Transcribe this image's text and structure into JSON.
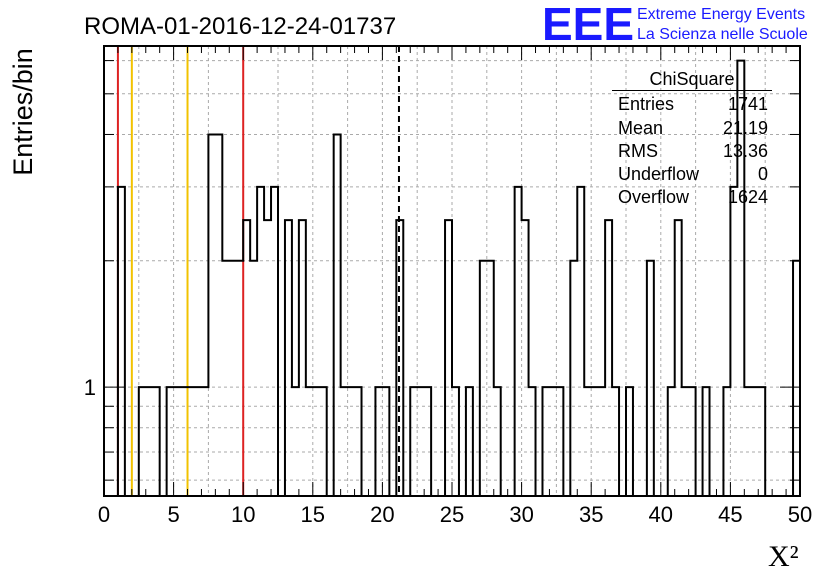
{
  "title": "ROMA-01-2016-12-24-01737",
  "logo": {
    "mark": "EEE",
    "line1": "Extreme Energy Events",
    "line2": "La Scienza nelle Scuole",
    "color": "#1a1aff"
  },
  "stats": {
    "name": "ChiSquare",
    "rows": [
      {
        "label": "Entries",
        "value": "1741"
      },
      {
        "label": "Mean",
        "value": "21.19"
      },
      {
        "label": "RMS",
        "value": "13.36"
      },
      {
        "label": "Underflow",
        "value": "0"
      },
      {
        "label": "Overflow",
        "value": "1624"
      }
    ]
  },
  "chart_data": {
    "type": "bar",
    "histogram": true,
    "title": "ROMA-01-2016-12-24-01737",
    "xlabel": "X²",
    "ylabel": "Entries/bin",
    "xlim": [
      0,
      50
    ],
    "ylim": [
      0.55,
      6.5
    ],
    "log_y": true,
    "grid": true,
    "bin_width": 0.5,
    "xticks": [
      0,
      5,
      10,
      15,
      20,
      25,
      30,
      35,
      40,
      45,
      50
    ],
    "yticks": [
      1
    ],
    "bins": [
      {
        "x": 1.0,
        "y": 3
      },
      {
        "x": 2.5,
        "y": 1
      },
      {
        "x": 3.0,
        "y": 1
      },
      {
        "x": 3.5,
        "y": 1
      },
      {
        "x": 4.5,
        "y": 1
      },
      {
        "x": 5.0,
        "y": 1
      },
      {
        "x": 5.5,
        "y": 1
      },
      {
        "x": 6.0,
        "y": 1
      },
      {
        "x": 6.5,
        "y": 1
      },
      {
        "x": 7.0,
        "y": 1
      },
      {
        "x": 7.5,
        "y": 4
      },
      {
        "x": 8.0,
        "y": 4
      },
      {
        "x": 8.5,
        "y": 2
      },
      {
        "x": 9.0,
        "y": 2
      },
      {
        "x": 9.5,
        "y": 2
      },
      {
        "x": 10.0,
        "y": 2.5
      },
      {
        "x": 10.5,
        "y": 2
      },
      {
        "x": 11.0,
        "y": 3
      },
      {
        "x": 11.5,
        "y": 2.5
      },
      {
        "x": 12.0,
        "y": 3
      },
      {
        "x": 13.0,
        "y": 2.5
      },
      {
        "x": 13.5,
        "y": 1
      },
      {
        "x": 14.0,
        "y": 2.5
      },
      {
        "x": 14.5,
        "y": 1
      },
      {
        "x": 15.0,
        "y": 1
      },
      {
        "x": 15.5,
        "y": 1
      },
      {
        "x": 16.5,
        "y": 4
      },
      {
        "x": 17.0,
        "y": 1
      },
      {
        "x": 17.5,
        "y": 1
      },
      {
        "x": 18.0,
        "y": 1
      },
      {
        "x": 19.5,
        "y": 1
      },
      {
        "x": 20.0,
        "y": 1
      },
      {
        "x": 21.0,
        "y": 2.5
      },
      {
        "x": 22.0,
        "y": 1
      },
      {
        "x": 22.5,
        "y": 1
      },
      {
        "x": 23.0,
        "y": 1
      },
      {
        "x": 24.5,
        "y": 2.5
      },
      {
        "x": 25.0,
        "y": 1
      },
      {
        "x": 26.0,
        "y": 1
      },
      {
        "x": 27.0,
        "y": 2
      },
      {
        "x": 27.5,
        "y": 2
      },
      {
        "x": 28.0,
        "y": 1
      },
      {
        "x": 29.5,
        "y": 3
      },
      {
        "x": 30.0,
        "y": 2.5
      },
      {
        "x": 30.5,
        "y": 1
      },
      {
        "x": 31.5,
        "y": 1
      },
      {
        "x": 32.0,
        "y": 1
      },
      {
        "x": 32.5,
        "y": 1
      },
      {
        "x": 33.5,
        "y": 2
      },
      {
        "x": 34.0,
        "y": 3
      },
      {
        "x": 34.5,
        "y": 1
      },
      {
        "x": 35.0,
        "y": 1
      },
      {
        "x": 35.5,
        "y": 1
      },
      {
        "x": 36.0,
        "y": 2.5
      },
      {
        "x": 36.5,
        "y": 1
      },
      {
        "x": 37.5,
        "y": 1
      },
      {
        "x": 39.0,
        "y": 2
      },
      {
        "x": 40.5,
        "y": 1
      },
      {
        "x": 41.0,
        "y": 2.5
      },
      {
        "x": 41.5,
        "y": 1
      },
      {
        "x": 42.0,
        "y": 1
      },
      {
        "x": 43.0,
        "y": 1
      },
      {
        "x": 44.5,
        "y": 1
      },
      {
        "x": 45.0,
        "y": 3
      },
      {
        "x": 45.5,
        "y": 6
      },
      {
        "x": 46.0,
        "y": 1
      },
      {
        "x": 46.5,
        "y": 1
      },
      {
        "x": 47.0,
        "y": 1
      },
      {
        "x": 49.5,
        "y": 2
      },
      {
        "x": 50.0,
        "y": 2
      }
    ],
    "vlines": [
      {
        "x": 1.0,
        "color": "#dd2222",
        "style": "solid"
      },
      {
        "x": 2.0,
        "color": "#f2c200",
        "style": "solid"
      },
      {
        "x": 6.0,
        "color": "#f2c200",
        "style": "solid"
      },
      {
        "x": 10.0,
        "color": "#dd2222",
        "style": "solid"
      },
      {
        "x": 21.19,
        "color": "#000000",
        "style": "dashed"
      }
    ]
  }
}
